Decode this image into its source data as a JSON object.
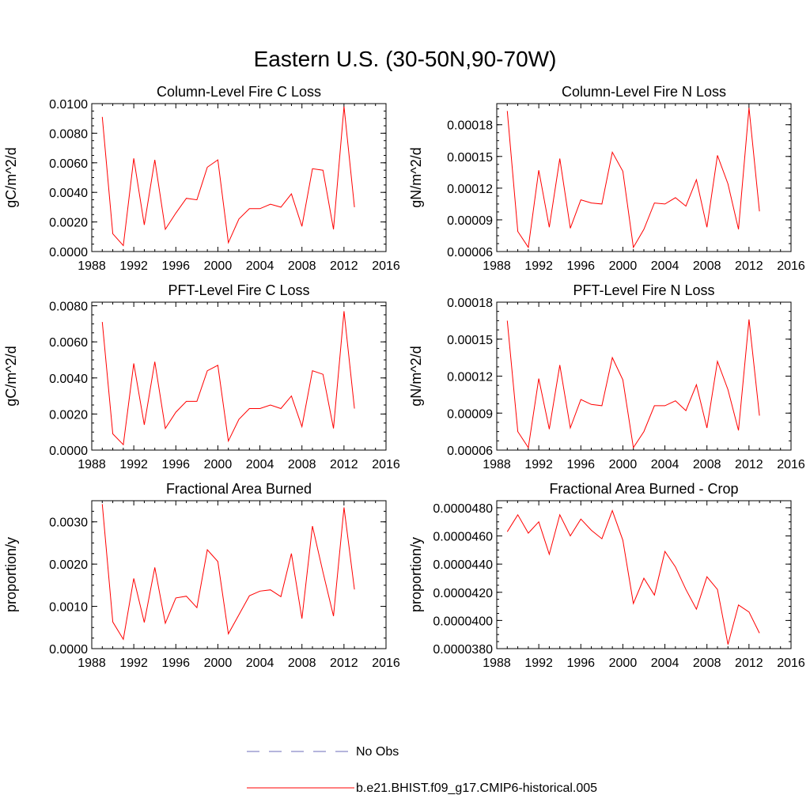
{
  "figure": {
    "title": "Eastern U.S. (30-50N,90-70W)"
  },
  "colors": {
    "model": "#ff0000",
    "obs": "#6b6bb8",
    "axis": "#000000"
  },
  "legend": {
    "obs_label": "No Obs",
    "model_label": "b.e21.BHIST.f09_g17.CMIP6-historical.005"
  },
  "chart_data": [
    {
      "type": "line",
      "title": "Column-Level Fire C Loss",
      "ylabel": "gC/m^2/d",
      "xlabel": "",
      "xlim": [
        1988,
        2016
      ],
      "ylim": [
        0.0,
        0.01
      ],
      "xticks": [
        "1988",
        "1992",
        "1996",
        "2000",
        "2004",
        "2008",
        "2012",
        "2016"
      ],
      "yticks": [
        "0.0000",
        "0.0020",
        "0.0040",
        "0.0060",
        "0.0080",
        "0.0100"
      ],
      "x": [
        1989,
        1990,
        1991,
        1992,
        1993,
        1994,
        1995,
        1996,
        1997,
        1998,
        1999,
        2000,
        2001,
        2002,
        2003,
        2004,
        2005,
        2006,
        2007,
        2008,
        2009,
        2010,
        2011,
        2012,
        2013
      ],
      "series": [
        {
          "name": "b.e21.BHIST.f09_g17.CMIP6-historical.005",
          "values": [
            0.0091,
            0.0012,
            0.0004,
            0.0063,
            0.0018,
            0.0062,
            0.0015,
            0.0026,
            0.0036,
            0.0035,
            0.0057,
            0.0062,
            0.0006,
            0.0022,
            0.0029,
            0.0029,
            0.0032,
            0.003,
            0.0039,
            0.0017,
            0.0056,
            0.0055,
            0.0015,
            0.0098,
            0.003
          ]
        }
      ]
    },
    {
      "type": "line",
      "title": "Column-Level Fire N Loss",
      "ylabel": "gN/m^2/d",
      "xlabel": "",
      "xlim": [
        1988,
        2016
      ],
      "ylim": [
        6e-05,
        0.0002
      ],
      "xticks": [
        "1988",
        "1992",
        "1996",
        "2000",
        "2004",
        "2008",
        "2012",
        "2016"
      ],
      "yticks": [
        "0.00006",
        "0.00009",
        "0.00012",
        "0.00015",
        "0.00018"
      ],
      "yticks_values": [
        6e-05,
        9e-05,
        0.00012,
        0.00015,
        0.00018
      ],
      "x": [
        1989,
        1990,
        1991,
        1992,
        1993,
        1994,
        1995,
        1996,
        1997,
        1998,
        1999,
        2000,
        2001,
        2002,
        2003,
        2004,
        2005,
        2006,
        2007,
        2008,
        2009,
        2010,
        2011,
        2012,
        2013
      ],
      "series": [
        {
          "name": "b.e21.BHIST.f09_g17.CMIP6-historical.005",
          "values": [
            0.000193,
            7.9e-05,
            6.4e-05,
            0.000137,
            8.3e-05,
            0.000148,
            8.2e-05,
            0.000109,
            0.000106,
            0.000105,
            0.000154,
            0.000136,
            6.4e-05,
            8.1e-05,
            0.000106,
            0.000105,
            0.000111,
            0.000103,
            0.000128,
            8.3e-05,
            0.000151,
            0.000124,
            8.1e-05,
            0.000196,
            9.8e-05
          ]
        }
      ]
    },
    {
      "type": "line",
      "title": "PFT-Level Fire C Loss",
      "ylabel": "gC/m^2/d",
      "xlabel": "",
      "xlim": [
        1988,
        2016
      ],
      "ylim": [
        0.0,
        0.0082
      ],
      "xticks": [
        "1988",
        "1992",
        "1996",
        "2000",
        "2004",
        "2008",
        "2012",
        "2016"
      ],
      "yticks": [
        "0.0000",
        "0.0020",
        "0.0040",
        "0.0060",
        "0.0080"
      ],
      "yticks_values": [
        0.0,
        0.002,
        0.004,
        0.006,
        0.008
      ],
      "x": [
        1989,
        1990,
        1991,
        1992,
        1993,
        1994,
        1995,
        1996,
        1997,
        1998,
        1999,
        2000,
        2001,
        2002,
        2003,
        2004,
        2005,
        2006,
        2007,
        2008,
        2009,
        2010,
        2011,
        2012,
        2013
      ],
      "series": [
        {
          "name": "b.e21.BHIST.f09_g17.CMIP6-historical.005",
          "values": [
            0.0071,
            0.0009,
            0.0003,
            0.0048,
            0.0014,
            0.0049,
            0.0012,
            0.0021,
            0.0027,
            0.0027,
            0.0044,
            0.0047,
            0.0005,
            0.0017,
            0.0023,
            0.0023,
            0.0025,
            0.0023,
            0.003,
            0.0013,
            0.0044,
            0.0042,
            0.0012,
            0.0077,
            0.0023
          ]
        }
      ]
    },
    {
      "type": "line",
      "title": "PFT-Level Fire N Loss",
      "ylabel": "gN/m^2/d",
      "xlabel": "",
      "xlim": [
        1988,
        2016
      ],
      "ylim": [
        6e-05,
        0.00018
      ],
      "xticks": [
        "1988",
        "1992",
        "1996",
        "2000",
        "2004",
        "2008",
        "2012",
        "2016"
      ],
      "yticks": [
        "0.00006",
        "0.00009",
        "0.00012",
        "0.00015",
        "0.00018"
      ],
      "yticks_values": [
        6e-05,
        9e-05,
        0.00012,
        0.00015,
        0.00018
      ],
      "x": [
        1989,
        1990,
        1991,
        1992,
        1993,
        1994,
        1995,
        1996,
        1997,
        1998,
        1999,
        2000,
        2001,
        2002,
        2003,
        2004,
        2005,
        2006,
        2007,
        2008,
        2009,
        2010,
        2011,
        2012,
        2013
      ],
      "series": [
        {
          "name": "b.e21.BHIST.f09_g17.CMIP6-historical.005",
          "values": [
            0.000165,
            7.5e-05,
            6.2e-05,
            0.000118,
            7.7e-05,
            0.000129,
            7.8e-05,
            0.000101,
            9.7e-05,
            9.6e-05,
            0.000135,
            0.000117,
            6.2e-05,
            7.5e-05,
            9.6e-05,
            9.6e-05,
            0.0001,
            9.2e-05,
            0.000113,
            7.8e-05,
            0.000132,
            0.000109,
            7.6e-05,
            0.000166,
            8.8e-05
          ]
        }
      ]
    },
    {
      "type": "line",
      "title": "Fractional Area Burned",
      "ylabel": "proportion/y",
      "xlabel": "",
      "xlim": [
        1988,
        2016
      ],
      "ylim": [
        0.0,
        0.0035
      ],
      "xticks": [
        "1988",
        "1992",
        "1996",
        "2000",
        "2004",
        "2008",
        "2012",
        "2016"
      ],
      "yticks": [
        "0.0000",
        "0.0010",
        "0.0020",
        "0.0030"
      ],
      "yticks_values": [
        0.0,
        0.001,
        0.002,
        0.003
      ],
      "x": [
        1989,
        1990,
        1991,
        1992,
        1993,
        1994,
        1995,
        1996,
        1997,
        1998,
        1999,
        2000,
        2001,
        2002,
        2003,
        2004,
        2005,
        2006,
        2007,
        2008,
        2009,
        2010,
        2011,
        2012,
        2013
      ],
      "series": [
        {
          "name": "b.e21.BHIST.f09_g17.CMIP6-historical.005",
          "values": [
            0.00342,
            0.00063,
            0.00022,
            0.00166,
            0.00062,
            0.00192,
            0.0006,
            0.0012,
            0.00124,
            0.00097,
            0.00234,
            0.00206,
            0.00035,
            0.0008,
            0.00125,
            0.00136,
            0.00139,
            0.00123,
            0.00225,
            0.00071,
            0.0029,
            0.00181,
            0.00077,
            0.00334,
            0.0014
          ]
        }
      ]
    },
    {
      "type": "line",
      "title": "Fractional Area Burned - Crop",
      "ylabel": "proportion/y",
      "xlabel": "",
      "xlim": [
        1988,
        2016
      ],
      "ylim": [
        3.8e-05,
        4.85e-05
      ],
      "xticks": [
        "1988",
        "1992",
        "1996",
        "2000",
        "2004",
        "2008",
        "2012",
        "2016"
      ],
      "yticks": [
        "0.0000380",
        "0.0000400",
        "0.0000420",
        "0.0000440",
        "0.0000460",
        "0.0000480"
      ],
      "yticks_values": [
        3.8e-05,
        4e-05,
        4.2e-05,
        4.4e-05,
        4.6e-05,
        4.8e-05
      ],
      "x": [
        1989,
        1990,
        1991,
        1992,
        1993,
        1994,
        1995,
        1996,
        1997,
        1998,
        1999,
        2000,
        2001,
        2002,
        2003,
        2004,
        2005,
        2006,
        2007,
        2008,
        2009,
        2010,
        2011,
        2012,
        2013
      ],
      "series": [
        {
          "name": "b.e21.BHIST.f09_g17.CMIP6-historical.005",
          "values": [
            4.63e-05,
            4.75e-05,
            4.62e-05,
            4.7e-05,
            4.47e-05,
            4.75e-05,
            4.6e-05,
            4.72e-05,
            4.64e-05,
            4.58e-05,
            4.78e-05,
            4.57e-05,
            4.12e-05,
            4.3e-05,
            4.18e-05,
            4.49e-05,
            4.38e-05,
            4.22e-05,
            4.08e-05,
            4.31e-05,
            4.22e-05,
            3.83e-05,
            4.11e-05,
            4.06e-05,
            3.91e-05
          ]
        }
      ]
    }
  ]
}
